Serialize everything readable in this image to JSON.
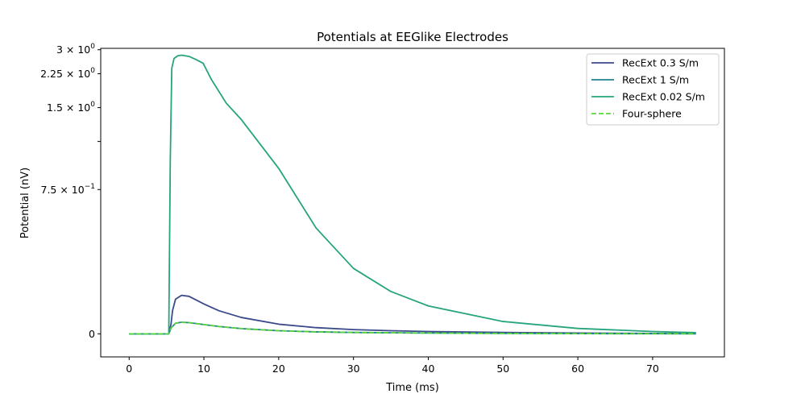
{
  "chart_data": {
    "type": "line",
    "title": "Potentials at EEGlike Electrodes",
    "xlabel": "Time (ms)",
    "ylabel": "Potential (nV)",
    "xlim": [
      -3.8,
      79.6
    ],
    "ylim": [
      -0.12,
      3.05
    ],
    "y_scale": "symlog",
    "y_scale_linthresh": 1.0,
    "grid": false,
    "legend_position": "top-right",
    "xticks": [
      {
        "value": 0,
        "label": "0"
      },
      {
        "value": 10,
        "label": "10"
      },
      {
        "value": 20,
        "label": "20"
      },
      {
        "value": 30,
        "label": "30"
      },
      {
        "value": 40,
        "label": "40"
      },
      {
        "value": 50,
        "label": "50"
      },
      {
        "value": 60,
        "label": "60"
      },
      {
        "value": 70,
        "label": "70"
      }
    ],
    "yticks": [
      {
        "value": 0,
        "label": "0",
        "base": "",
        "exp": ""
      },
      {
        "value": 0.75,
        "label": "7.5 × 10^-1",
        "base": "7.5 × 10",
        "exp": "−1"
      },
      {
        "value": 1.0,
        "label": "",
        "base": "",
        "exp": ""
      },
      {
        "value": 1.5,
        "label": "1.5 × 10^0",
        "base": "1.5 × 10",
        "exp": "0"
      },
      {
        "value": 2.25,
        "label": "2.25 × 10^0",
        "base": "2.25 × 10",
        "exp": "0"
      },
      {
        "value": 3.0,
        "label": "3 × 10^0",
        "base": "3 × 10",
        "exp": "0"
      }
    ],
    "series": [
      {
        "name": "RecExt 0.3 S/m",
        "color": "#3b4a8a",
        "dash": "solid",
        "x": [
          0,
          5.3,
          5.6,
          5.8,
          6.2,
          7,
          8,
          9,
          10,
          12,
          15,
          20,
          25,
          30,
          35,
          40,
          50,
          60,
          70,
          75.8
        ],
        "y": [
          0,
          0,
          0.05,
          0.12,
          0.18,
          0.2,
          0.195,
          0.175,
          0.155,
          0.12,
          0.085,
          0.05,
          0.032,
          0.022,
          0.016,
          0.012,
          0.007,
          0.004,
          0.002,
          0.001
        ]
      },
      {
        "name": "RecExt 1 S/m",
        "color": "#21838c",
        "dash": "solid",
        "x": [
          0,
          5.3,
          5.6,
          6.2,
          7,
          8,
          10,
          12,
          15,
          20,
          25,
          30,
          40,
          50,
          60,
          70,
          75.8
        ],
        "y": [
          0,
          0,
          0.03,
          0.055,
          0.06,
          0.058,
          0.048,
          0.038,
          0.027,
          0.016,
          0.01,
          0.007,
          0.004,
          0.002,
          0.001,
          0.0005,
          0.0002
        ]
      },
      {
        "name": "RecExt 0.02 S/m",
        "color": "#25a47e",
        "dash": "solid",
        "x": [
          0,
          5.3,
          5.5,
          5.7,
          6,
          6.5,
          7,
          8,
          9,
          9.9,
          11,
          13,
          15,
          20,
          25,
          30,
          35,
          40,
          50,
          60,
          70,
          75.8
        ],
        "y": [
          0,
          0,
          0.9,
          2.4,
          2.7,
          2.79,
          2.81,
          2.77,
          2.66,
          2.55,
          2.1,
          1.58,
          1.3,
          0.86,
          0.55,
          0.34,
          0.22,
          0.145,
          0.064,
          0.028,
          0.012,
          0.006
        ]
      },
      {
        "name": "Four-sphere",
        "color": "#5ad43c",
        "dash": "dashed",
        "x": [
          0,
          5.3,
          5.6,
          6.2,
          7,
          8,
          10,
          12,
          15,
          20,
          25,
          30,
          40,
          50,
          60,
          70,
          75.8
        ],
        "y": [
          0,
          0,
          0.03,
          0.055,
          0.06,
          0.058,
          0.048,
          0.038,
          0.027,
          0.016,
          0.01,
          0.007,
          0.004,
          0.002,
          0.001,
          0.0005,
          0.0002
        ]
      }
    ]
  }
}
